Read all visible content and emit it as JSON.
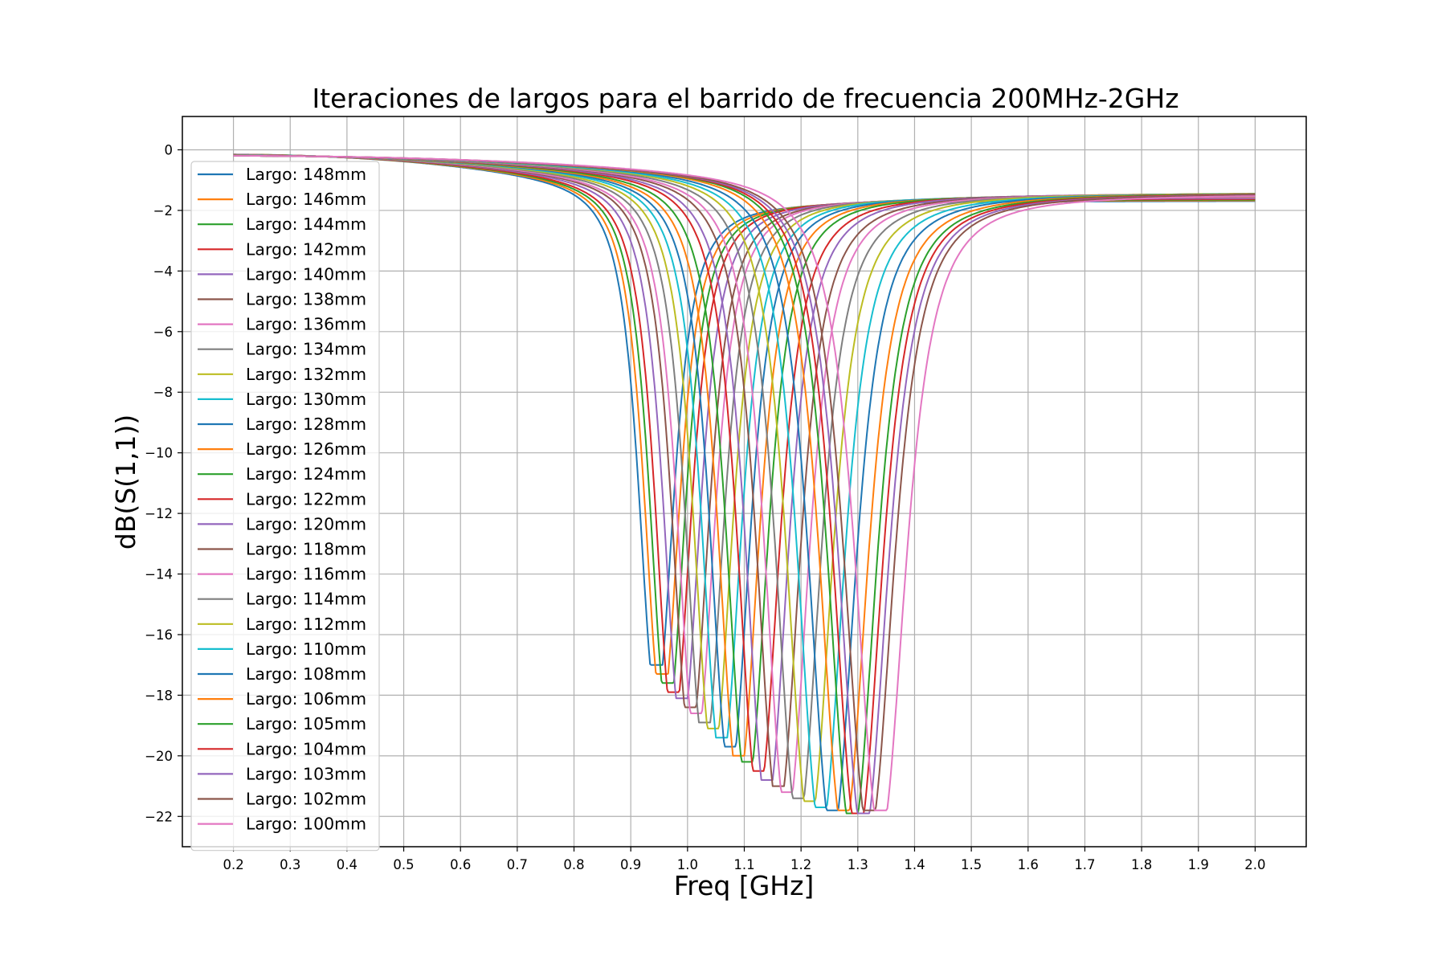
{
  "chart_data": {
    "type": "line",
    "title": "Iteraciones de largos para el barrido de frecuencia 200MHz-2GHz",
    "xlabel": "Freq [GHz]",
    "ylabel": "dB(S(1,1))",
    "xlim": [
      0.11,
      2.09
    ],
    "ylim": [
      -23.0,
      1.1
    ],
    "x_ticks": [
      "0.2",
      "0.3",
      "0.4",
      "0.5",
      "0.6",
      "0.7",
      "0.8",
      "0.9",
      "1.0",
      "1.1",
      "1.2",
      "1.3",
      "1.4",
      "1.5",
      "1.6",
      "1.7",
      "1.8",
      "1.9",
      "2.0"
    ],
    "x_tick_values": [
      0.2,
      0.3,
      0.4,
      0.5,
      0.6,
      0.7,
      0.8,
      0.9,
      1.0,
      1.1,
      1.2,
      1.3,
      1.4,
      1.5,
      1.6,
      1.7,
      1.8,
      1.9,
      2.0
    ],
    "y_ticks": [
      "0",
      "−2",
      "−4",
      "−6",
      "−8",
      "−10",
      "−12",
      "−14",
      "−16",
      "−18",
      "−20",
      "−22"
    ],
    "y_tick_values": [
      0,
      -2,
      -4,
      -6,
      -8,
      -10,
      -12,
      -14,
      -16,
      -18,
      -20,
      -22
    ],
    "grid": true,
    "legend_position": "left",
    "x_range": [
      0.2,
      2.0
    ],
    "series": [
      {
        "name": "Largo: 148mm",
        "color": "#1f77b4",
        "resonance_ghz": 0.945,
        "min_db": -17.0,
        "end_db": -1.25
      },
      {
        "name": "Largo: 146mm",
        "color": "#ff7f0e",
        "resonance_ghz": 0.955,
        "min_db": -17.3,
        "end_db": -1.22
      },
      {
        "name": "Largo: 144mm",
        "color": "#2ca02c",
        "resonance_ghz": 0.965,
        "min_db": -17.6,
        "end_db": -1.19
      },
      {
        "name": "Largo: 142mm",
        "color": "#d62728",
        "resonance_ghz": 0.975,
        "min_db": -17.9,
        "end_db": -1.16
      },
      {
        "name": "Largo: 140mm",
        "color": "#9467bd",
        "resonance_ghz": 0.99,
        "min_db": -18.1,
        "end_db": -1.13
      },
      {
        "name": "Largo: 138mm",
        "color": "#8c564b",
        "resonance_ghz": 1.005,
        "min_db": -18.4,
        "end_db": -1.1
      },
      {
        "name": "Largo: 136mm",
        "color": "#e377c2",
        "resonance_ghz": 1.015,
        "min_db": -18.6,
        "end_db": -1.08
      },
      {
        "name": "Largo: 134mm",
        "color": "#7f7f7f",
        "resonance_ghz": 1.03,
        "min_db": -18.9,
        "end_db": -1.05
      },
      {
        "name": "Largo: 132mm",
        "color": "#bcbd22",
        "resonance_ghz": 1.045,
        "min_db": -19.1,
        "end_db": -1.03
      },
      {
        "name": "Largo: 130mm",
        "color": "#17becf",
        "resonance_ghz": 1.06,
        "min_db": -19.4,
        "end_db": -1.0
      },
      {
        "name": "Largo: 128mm",
        "color": "#1f77b4",
        "resonance_ghz": 1.075,
        "min_db": -19.7,
        "end_db": -0.98
      },
      {
        "name": "Largo: 126mm",
        "color": "#ff7f0e",
        "resonance_ghz": 1.09,
        "min_db": -20.0,
        "end_db": -0.96
      },
      {
        "name": "Largo: 124mm",
        "color": "#2ca02c",
        "resonance_ghz": 1.105,
        "min_db": -20.2,
        "end_db": -0.94
      },
      {
        "name": "Largo: 122mm",
        "color": "#d62728",
        "resonance_ghz": 1.125,
        "min_db": -20.5,
        "end_db": -0.92
      },
      {
        "name": "Largo: 120mm",
        "color": "#9467bd",
        "resonance_ghz": 1.14,
        "min_db": -20.8,
        "end_db": -0.9
      },
      {
        "name": "Largo: 118mm",
        "color": "#8c564b",
        "resonance_ghz": 1.16,
        "min_db": -21.0,
        "end_db": -0.89
      },
      {
        "name": "Largo: 116mm",
        "color": "#e377c2",
        "resonance_ghz": 1.175,
        "min_db": -21.2,
        "end_db": -0.88
      },
      {
        "name": "Largo: 114mm",
        "color": "#7f7f7f",
        "resonance_ghz": 1.195,
        "min_db": -21.4,
        "end_db": -0.87
      },
      {
        "name": "Largo: 112mm",
        "color": "#bcbd22",
        "resonance_ghz": 1.215,
        "min_db": -21.5,
        "end_db": -0.86
      },
      {
        "name": "Largo: 110mm",
        "color": "#17becf",
        "resonance_ghz": 1.235,
        "min_db": -21.7,
        "end_db": -0.86
      },
      {
        "name": "Largo: 108mm",
        "color": "#1f77b4",
        "resonance_ghz": 1.255,
        "min_db": -21.8,
        "end_db": -0.85
      },
      {
        "name": "Largo: 106mm",
        "color": "#ff7f0e",
        "resonance_ghz": 1.275,
        "min_db": -21.8,
        "end_db": -0.85
      },
      {
        "name": "Largo: 105mm",
        "color": "#2ca02c",
        "resonance_ghz": 1.29,
        "min_db": -21.9,
        "end_db": -0.85
      },
      {
        "name": "Largo: 104mm",
        "color": "#d62728",
        "resonance_ghz": 1.3,
        "min_db": -21.9,
        "end_db": -0.86
      },
      {
        "name": "Largo: 103mm",
        "color": "#9467bd",
        "resonance_ghz": 1.31,
        "min_db": -21.9,
        "end_db": -0.87
      },
      {
        "name": "Largo: 102mm",
        "color": "#8c564b",
        "resonance_ghz": 1.32,
        "min_db": -21.8,
        "end_db": -0.88
      },
      {
        "name": "Largo: 100mm",
        "color": "#e377c2",
        "resonance_ghz": 1.34,
        "min_db": -21.8,
        "end_db": -0.9
      }
    ]
  }
}
